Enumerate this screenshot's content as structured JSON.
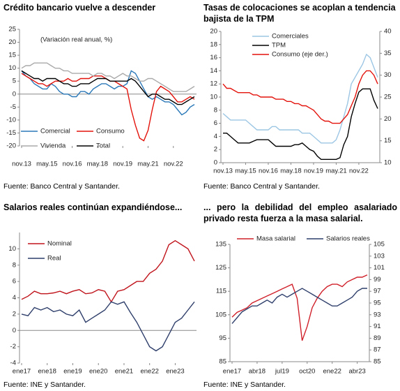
{
  "chart_data": [
    {
      "type": "line",
      "title": "Crédito bancario vuelve a descender",
      "subtitle": "(Variación real anual, %)",
      "source": "Fuente: Banco Central y Santander.",
      "categories": [
        "nov.13",
        null,
        null,
        null,
        null,
        null,
        "may.15",
        null,
        null,
        null,
        null,
        null,
        "nov.16",
        null,
        null,
        null,
        null,
        null,
        "may.18",
        null,
        null,
        null,
        null,
        null,
        "nov.19",
        null,
        null,
        null,
        null,
        null,
        "may.21",
        null,
        null,
        null,
        null,
        null,
        "nov.22",
        null,
        null,
        null,
        null,
        null
      ],
      "ylim": [
        -20,
        25
      ],
      "yticks": [
        -20,
        -15,
        -10,
        -5,
        0,
        5,
        10,
        15,
        20,
        25
      ],
      "series": [
        {
          "name": "Comercial",
          "color": "#2a78b8",
          "values": [
            9,
            7,
            6,
            4,
            3,
            2,
            2,
            4,
            3,
            1,
            0,
            0,
            -1,
            -1,
            1,
            1,
            0,
            2,
            3,
            4,
            4,
            3,
            2,
            3,
            3,
            4,
            9,
            8,
            5,
            2,
            -1,
            -2,
            -1,
            -2,
            -3,
            -3,
            -4,
            -6,
            -8,
            -7,
            -5,
            -4
          ]
        },
        {
          "name": "Consumo",
          "color": "#e3120b",
          "values": [
            8,
            7,
            6,
            5,
            4,
            4,
            3,
            4,
            5,
            5,
            5,
            6,
            5,
            5,
            6,
            6,
            6,
            7,
            7,
            7,
            6,
            5,
            5,
            4,
            3,
            2,
            -6,
            -12,
            -17,
            -18,
            -14,
            -6,
            1,
            3,
            2,
            1,
            -1,
            -3,
            -3,
            -2,
            -1,
            -2
          ]
        },
        {
          "name": "Vivienda",
          "color": "#aaaaaa",
          "values": [
            10,
            11,
            11,
            12,
            12,
            12,
            12,
            11,
            10,
            10,
            9,
            9,
            8,
            8,
            8,
            8,
            8,
            7,
            8,
            8,
            7,
            7,
            6,
            7,
            8,
            7,
            7,
            6,
            5,
            5,
            6,
            6,
            5,
            4,
            3,
            2,
            1,
            1,
            1,
            1,
            2,
            3
          ]
        },
        {
          "name": "Total",
          "color": "#000000",
          "values": [
            9,
            8,
            7,
            6,
            6,
            5,
            6,
            6,
            6,
            5,
            4,
            4,
            3,
            3,
            4,
            4,
            4,
            5,
            6,
            6,
            6,
            5,
            5,
            5,
            5,
            5,
            6,
            5,
            3,
            1,
            -1,
            0,
            0,
            -1,
            -2,
            -2,
            -3,
            -4,
            -4,
            -3,
            -2,
            -1
          ]
        }
      ]
    },
    {
      "type": "line",
      "title": "Tasas de colocaciones se acoplan a tendencia bajista de la TPM",
      "source": "Fuente: Banco Central y Santander.",
      "categories": [
        "nov.13",
        null,
        null,
        null,
        null,
        null,
        "may.15",
        null,
        null,
        null,
        null,
        null,
        "nov.16",
        null,
        null,
        null,
        null,
        null,
        "may.18",
        null,
        null,
        null,
        null,
        null,
        "nov.19",
        null,
        null,
        null,
        null,
        null,
        "may.21",
        null,
        null,
        null,
        null,
        null,
        "nov.22",
        null,
        null,
        null,
        null,
        null
      ],
      "ylim": [
        0,
        20
      ],
      "yticks": [
        0,
        2,
        4,
        6,
        8,
        10,
        12,
        14,
        16,
        18,
        20
      ],
      "y2lim": [
        10,
        40
      ],
      "y2ticks": [
        10,
        15,
        20,
        25,
        30,
        35,
        40
      ],
      "series": [
        {
          "name": "Comerciales",
          "color": "#9cc6e4",
          "values": [
            7.5,
            7,
            6.5,
            6.5,
            6.5,
            6.5,
            6.5,
            6,
            5.5,
            5,
            5,
            5,
            5,
            5.5,
            5.5,
            5,
            5,
            5,
            5,
            5,
            5,
            4.5,
            4.5,
            4.5,
            4,
            3.5,
            3,
            3,
            3,
            3,
            3.5,
            5,
            7,
            9,
            12,
            13,
            14,
            15,
            16.5,
            16,
            14.5,
            13
          ]
        },
        {
          "name": "TPM",
          "color": "#000000",
          "values": [
            4.5,
            4.5,
            4,
            3.5,
            3,
            3,
            3,
            3,
            3.25,
            3.5,
            3.5,
            3.5,
            3.5,
            3,
            2.5,
            2.5,
            2.5,
            2.5,
            2.5,
            2.75,
            2.75,
            3,
            2.5,
            2,
            1.75,
            1,
            0.5,
            0.5,
            0.5,
            0.5,
            0.5,
            0.75,
            2.75,
            4,
            7,
            9,
            10.75,
            11.25,
            11.25,
            11.25,
            9.5,
            8.25
          ]
        },
        {
          "name": "Consumo  (eje der.)",
          "color": "#e3120b",
          "axis": "y2",
          "values": [
            28,
            27,
            27,
            26.5,
            26,
            26,
            26,
            26,
            25.5,
            25.5,
            25,
            25,
            25,
            25,
            24.5,
            24.5,
            24.5,
            24,
            24,
            23.5,
            23.5,
            23,
            23,
            22.5,
            22,
            21,
            20,
            19.5,
            19.5,
            19,
            19,
            19,
            20,
            21,
            23,
            25,
            28,
            30,
            31,
            31,
            30,
            28
          ]
        }
      ]
    },
    {
      "type": "line",
      "title": "Salarios reales continúan expandiéndose...",
      "source": "Fuente: INE y Santander.",
      "categories": [
        "ene17",
        null,
        null,
        null,
        "ene18",
        null,
        null,
        null,
        "ene19",
        null,
        null,
        null,
        "ene20",
        null,
        null,
        null,
        "ene21",
        null,
        null,
        null,
        "ene22",
        null,
        null,
        null,
        "ene23",
        null,
        null,
        null
      ],
      "ylim": [
        -4,
        12
      ],
      "yticks": [
        -4,
        -2,
        0,
        2,
        4,
        6,
        8,
        10
      ],
      "series": [
        {
          "name": "Nominal",
          "color": "#c0141c",
          "values": [
            3.8,
            4.2,
            4.8,
            4.5,
            4.5,
            4.6,
            4.8,
            4.5,
            4.8,
            5,
            4.5,
            4.6,
            5,
            4.8,
            3.5,
            4.8,
            5,
            5.5,
            6,
            6,
            7,
            7.5,
            8.5,
            10.5,
            11,
            10.5,
            10,
            8.5
          ]
        },
        {
          "name": "Real",
          "color": "#2f3f6b",
          "values": [
            2,
            1.8,
            2.8,
            2.5,
            2.8,
            2.3,
            2.5,
            2,
            1.8,
            2.5,
            1,
            1.5,
            2,
            2.5,
            3.5,
            3.2,
            3.5,
            2.2,
            1,
            -0.5,
            -2,
            -2.5,
            -2,
            -0.5,
            1,
            1.5,
            2.5,
            3.5
          ]
        }
      ]
    },
    {
      "type": "line",
      "title": "... pero la debilidad del empleo asalariado privado resta fuerza a la masa salarial.",
      "source": "Fuente: INE y Santander.",
      "categories": [
        "ene17",
        null,
        null,
        null,
        null,
        "abr18",
        null,
        null,
        null,
        null,
        "jul19",
        null,
        null,
        null,
        null,
        "oct20",
        null,
        null,
        null,
        null,
        "ene22",
        null,
        null,
        null,
        null,
        "abr23",
        null,
        null
      ],
      "ylim": [
        85,
        135
      ],
      "yticks": [
        85,
        95,
        105,
        115,
        125,
        135
      ],
      "y2lim": [
        85,
        105
      ],
      "y2ticks": [
        85,
        87,
        89,
        91,
        93,
        95,
        97,
        99,
        101,
        103,
        105
      ],
      "series": [
        {
          "name": "Masa salarial",
          "color": "#d0202a",
          "values": [
            104,
            106,
            107,
            108,
            110,
            111,
            112,
            113,
            114,
            115,
            116,
            117,
            118,
            112,
            94,
            100,
            108,
            112,
            115,
            117,
            118,
            118,
            117,
            119,
            120,
            121,
            121,
            122
          ]
        },
        {
          "name": "Salarios reales",
          "color": "#2f3f6b",
          "axis": "y2",
          "values": [
            91.5,
            92.5,
            93.5,
            94,
            94.5,
            94.5,
            95,
            95.5,
            95,
            96,
            96.5,
            96,
            96.5,
            97,
            97.5,
            97,
            96.5,
            96,
            95.5,
            95,
            94.5,
            94.5,
            95,
            95.5,
            96,
            97,
            97.5,
            97.5
          ]
        }
      ]
    }
  ]
}
